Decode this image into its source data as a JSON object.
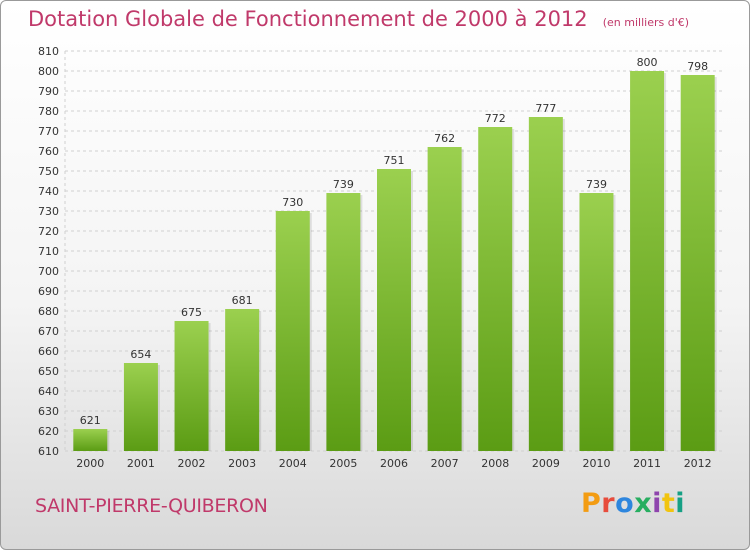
{
  "header": {
    "title": "Dotation Globale de Fonctionnement de 2000 à 2012",
    "unit": "(en milliers d'€)"
  },
  "footer": {
    "commune": "SAINT-PIERRE-QUIBERON",
    "logo_text": "Proxiti",
    "logo_colors": [
      "#f39c12",
      "#e74c3c",
      "#2e86de",
      "#27ae60",
      "#8e44ad",
      "#f1c40f",
      "#16a085"
    ]
  },
  "colors": {
    "bar_light": "#9bd04f",
    "bar_dark": "#5b9c14",
    "title": "#c0396a"
  },
  "chart_data": {
    "type": "bar",
    "categories": [
      "2000",
      "2001",
      "2002",
      "2003",
      "2004",
      "2005",
      "2006",
      "2007",
      "2008",
      "2009",
      "2010",
      "2011",
      "2012"
    ],
    "values": [
      621,
      654,
      675,
      681,
      730,
      739,
      751,
      762,
      772,
      777,
      739,
      800,
      798
    ],
    "ylim": [
      610,
      810
    ],
    "ytick_step": 10,
    "grid": true,
    "legend": "none"
  }
}
